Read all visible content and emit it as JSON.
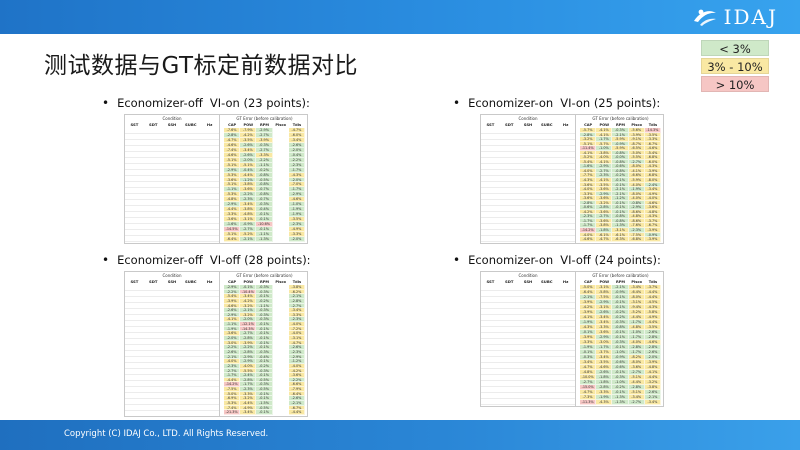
{
  "header": {
    "logo_text": "IDAJ",
    "logo_icon": "idaj-swoosh-logo"
  },
  "slide": {
    "title": "测试数据与GT标定前数据对比"
  },
  "legend": [
    {
      "label": "< 3%",
      "color": "#cfe9c9"
    },
    {
      "label": "3% - 10%",
      "color": "#f9e8a3"
    },
    {
      "label": "> 10%",
      "color": "#f6c6c4"
    }
  ],
  "panels": [
    {
      "bullet": "•",
      "label_main": "Economizer-off",
      "label_sub": "VI-on (23 points):",
      "table": {
        "condition_title": "Condition",
        "condition_columns": [
          "SST",
          "SDT",
          "SSH",
          "SUBC",
          "Hz"
        ],
        "error_title": "GT Error (before calibration)",
        "error_columns": [
          "CAP",
          "POW",
          "RPM",
          "Pisco",
          "Tdis"
        ],
        "rows": [
          [
            "-7.6%",
            "-7.9%",
            "-2.9%",
            "",
            "-4.7%"
          ],
          [
            "-2.8%",
            "-4.2%",
            "-2.7%",
            "",
            "-6.0%"
          ],
          [
            "-4.7%",
            "-3.5%",
            "-3.9%",
            "",
            "-3.4%"
          ],
          [
            "-4.6%",
            "-2.6%",
            "-0.3%",
            "",
            "-2.6%"
          ],
          [
            "-7.4%",
            "-3.4%",
            "-2.7%",
            "",
            "-2.0%"
          ],
          [
            "-4.6%",
            "-2.6%",
            "-3.3%",
            "",
            "-0.4%"
          ],
          [
            "-5.1%",
            "-2.0%",
            "-2.2%",
            "",
            "-2.2%"
          ],
          [
            "-5.1%",
            "-5.1%",
            "-1.1%",
            "",
            "-2.3%"
          ],
          [
            "-2.9%",
            "-0.4%",
            "-0.2%",
            "",
            "-1.7%"
          ],
          [
            "-5.3%",
            "-4.4%",
            "-0.8%",
            "",
            "-4.3%"
          ],
          [
            "-3.6%",
            "-1.2%",
            "-0.5%",
            "",
            "-2.0%"
          ],
          [
            "-5.1%",
            "-3.8%",
            "-0.8%",
            "",
            "-7.0%"
          ],
          [
            "-1.1%",
            "-3.6%",
            "-0.7%",
            "",
            "-1.7%"
          ],
          [
            "-5.3%",
            "-2.2%",
            "-0.8%",
            "",
            "-2.9%"
          ],
          [
            "-4.8%",
            "-2.3%",
            "-0.7%",
            "",
            "-4.6%"
          ],
          [
            "-2.9%",
            "-3.4%",
            "-0.3%",
            "",
            "-1.0%"
          ],
          [
            "-4.4%",
            "-3.8%",
            "-0.4%",
            "",
            "-1.9%"
          ],
          [
            "-3.3%",
            "-4.8%",
            "-0.1%",
            "",
            "-1.9%"
          ],
          [
            "-3.6%",
            "-3.1%",
            "-0.1%",
            "",
            "-3.5%"
          ],
          [
            "-1.6%",
            "-0.9%",
            "-10.6%",
            "",
            "-2.3%"
          ],
          [
            "-14.5%",
            "-2.7%",
            "-0.1%",
            "",
            "-4.9%"
          ],
          [
            "-5.1%",
            "-5.2%",
            "-1.1%",
            "",
            "-3.3%"
          ],
          [
            "-6.4%",
            "-2.1%",
            "-1.3%",
            "",
            "-2.0%"
          ]
        ]
      }
    },
    {
      "bullet": "•",
      "label_main": "Economizer-on",
      "label_sub": "VI-on (25 points):",
      "table": {
        "condition_title": "Condition",
        "condition_columns": [
          "SST",
          "SDT",
          "SSH",
          "SUBC",
          "Hz"
        ],
        "error_title": "GT Error (before calibration)",
        "error_columns": [
          "CAP",
          "POW",
          "RPM",
          "Pisco",
          "Tdis"
        ],
        "rows": [
          [
            "-5.7%",
            "-4.1%",
            "-0.3%",
            "-5.6%",
            "-14.3%"
          ],
          [
            "-2.8%",
            "-4.1%",
            "-2.1%",
            "-3.9%",
            "-3.5%"
          ],
          [
            "-3.2%",
            "-1.7%",
            "-5.9%",
            "-9.1%",
            "-3.3%"
          ],
          [
            "-5.1%",
            "-5.7%",
            "-0.9%",
            "-8.7%",
            "-6.7%"
          ],
          [
            "-11.4%",
            "-1.0%",
            "-5.9%",
            "-6.5%",
            "-4.6%"
          ],
          [
            "-4.1%",
            "-3.8%",
            "-0.8%",
            "-5.0%",
            "-5.4%"
          ],
          [
            "-5.2%",
            "-4.0%",
            "-0.0%",
            "-5.5%",
            "-6.8%"
          ],
          [
            "-5.4%",
            "-4.1%",
            "-0.8%",
            "-2.7%",
            "-6.0%"
          ],
          [
            "-1.6%",
            "-2.9%",
            "-0.6%",
            "-8.0%",
            "-4.3%"
          ],
          [
            "-4.0%",
            "-2.7%",
            "-0.8%",
            "-4.1%",
            "-3.9%"
          ],
          [
            "-7.7%",
            "-2.3%",
            "-0.2%",
            "-6.6%",
            "-6.8%"
          ],
          [
            "-4.3%",
            "-4.1%",
            "-0.1%",
            "-5.9%",
            "-8.0%"
          ],
          [
            "-3.6%",
            "-3.5%",
            "-0.1%",
            "-4.0%",
            "-2.4%"
          ],
          [
            "-4.0%",
            "-3.6%",
            "-2.1%",
            "-1.9%",
            "-3.4%"
          ],
          [
            "-3.3%",
            "-2.9%",
            "-2.1%",
            "-8.0%",
            "-4.9%"
          ],
          [
            "-3.6%",
            "-3.6%",
            "-1.2%",
            "-4.0%",
            "-4.0%"
          ],
          [
            "-2.8%",
            "-3.2%",
            "-0.1%",
            "-0.8%",
            "-4.6%"
          ],
          [
            "-0.6%",
            "-2.8%",
            "-0.1%",
            "-2.9%",
            "-3.6%"
          ],
          [
            "-4.2%",
            "-3.6%",
            "-0.1%",
            "-8.6%",
            "-4.8%"
          ],
          [
            "-2.3%",
            "-2.7%",
            "-0.8%",
            "-4.8%",
            "-4.3%"
          ],
          [
            "-1.7%",
            "-3.6%",
            "-0.8%",
            "-8.6%",
            "-3.7%"
          ],
          [
            "-1.7%",
            "-3.8%",
            "-1.3%",
            "-7.6%",
            "-6.7%"
          ],
          [
            "-14.2%",
            "-1.8%",
            "-3.1%",
            "-2.3%",
            "-3.9%"
          ],
          [
            "-4.0%",
            "-6.1%",
            "-6.1%",
            "-7.5%",
            "-0.9%"
          ],
          [
            "-4.6%",
            "-4.7%",
            "-6.3%",
            "-6.8%",
            "-3.9%"
          ]
        ]
      }
    },
    {
      "bullet": "•",
      "label_main": "Economizer-off",
      "label_sub": "VI-off (28 points):",
      "table": {
        "condition_title": "Condition",
        "condition_columns": [
          "SST",
          "SDT",
          "SSH",
          "SUBC",
          "Hz"
        ],
        "error_title": "GT Error (before calibration)",
        "error_columns": [
          "CAP",
          "POW",
          "RPM",
          "Pisco",
          "Tdis"
        ],
        "rows": [
          [
            "-2.9%",
            "-0.1%",
            "-0.3%",
            "",
            "-3.8%"
          ],
          [
            "-2.2%",
            "-10.4%",
            "-0.3%",
            "",
            "-6.2%"
          ],
          [
            "-5.4%",
            "-3.4%",
            "-0.1%",
            "",
            "-2.1%"
          ],
          [
            "-3.9%",
            "-4.2%",
            "-0.2%",
            "",
            "-2.8%"
          ],
          [
            "-4.6%",
            "-3.2%",
            "-1.1%",
            "",
            "-2.7%"
          ],
          [
            "-2.6%",
            "-2.1%",
            "-0.3%",
            "",
            "-3.4%"
          ],
          [
            "-2.9%",
            "-3.2%",
            "-0.3%",
            "",
            "-3.3%"
          ],
          [
            "-4.1%",
            "-2.0%",
            "-0.3%",
            "",
            "-2.3%"
          ],
          [
            "-1.1%",
            "-12.1%",
            "-0.1%",
            "",
            "-4.0%"
          ],
          [
            "-1.9%",
            "-14.3%",
            "-0.1%",
            "",
            "-7.2%"
          ],
          [
            "-3.6%",
            "-2.7%",
            "-0.1%",
            "",
            "-4.0%"
          ],
          [
            "-2.0%",
            "-2.8%",
            "-0.1%",
            "",
            "-3.1%"
          ],
          [
            "-3.0%",
            "-3.9%",
            "-0.1%",
            "",
            "-4.7%"
          ],
          [
            "-2.2%",
            "-2.2%",
            "-0.1%",
            "",
            "-2.6%"
          ],
          [
            "-2.6%",
            "-2.8%",
            "-0.3%",
            "",
            "-2.3%"
          ],
          [
            "-2.1%",
            "-2.9%",
            "-0.4%",
            "",
            "-2.9%"
          ],
          [
            "-4.0%",
            "-2.9%",
            "-0.1%",
            "",
            "-1.2%"
          ],
          [
            "-2.3%",
            "-4.0%",
            "-0.2%",
            "",
            "-4.0%"
          ],
          [
            "-2.7%",
            "-5.5%",
            "-0.3%",
            "",
            "-4.2%"
          ],
          [
            "-1.7%",
            "-2.4%",
            "-0.1%",
            "",
            "-3.6%"
          ],
          [
            "-4.4%",
            "-2.8%",
            "-0.5%",
            "",
            "-2.2%"
          ],
          [
            "-14.2%",
            "-1.7%",
            "-0.3%",
            "",
            "-6.6%"
          ],
          [
            "-7.5%",
            "-2.3%",
            "-0.5%",
            "",
            "-7.9%"
          ],
          [
            "-5.0%",
            "-3.3%",
            "-0.1%",
            "",
            "-6.4%"
          ],
          [
            "-6.9%",
            "-3.2%",
            "-0.1%",
            "",
            "-2.6%"
          ],
          [
            "-5.3%",
            "-4.4%",
            "-1.5%",
            "",
            "-2.1%"
          ],
          [
            "-7.4%",
            "-4.9%",
            "-0.5%",
            "",
            "-6.7%"
          ],
          [
            "-21.3%",
            "-3.4%",
            "-0.1%",
            "",
            "-4.4%"
          ]
        ]
      }
    },
    {
      "bullet": "•",
      "label_main": "Economizer-on",
      "label_sub": "VI-off (24 points):",
      "table": {
        "condition_title": "Condition",
        "condition_columns": [
          "SST",
          "SDT",
          "SSH",
          "SUBC",
          "Hz"
        ],
        "error_title": "GT Error (before calibration)",
        "error_columns": [
          "CAP",
          "POW",
          "RPM",
          "Pisco",
          "Tdis"
        ],
        "rows": [
          [
            "-5.0%",
            "-3.1%",
            "-2.1%",
            "-3.4%",
            "-3.7%"
          ],
          [
            "-6.4%",
            "-5.8%",
            "-0.9%",
            "-6.4%",
            "-4.4%"
          ],
          [
            "-2.1%",
            "-7.5%",
            "-0.1%",
            "-8.0%",
            "-4.4%"
          ],
          [
            "-3.9%",
            "-2.9%",
            "-0.1%",
            "-3.1%",
            "-4.5%"
          ],
          [
            "-4.2%",
            "-3.1%",
            "-0.1%",
            "-9.4%",
            "-4.3%"
          ],
          [
            "-3.9%",
            "-2.6%",
            "-0.2%",
            "-5.2%",
            "-5.8%"
          ],
          [
            "-4.1%",
            "-3.4%",
            "-0.2%",
            "-4.4%",
            "-4.9%"
          ],
          [
            "-1.9%",
            "-3.4%",
            "-0.3%",
            "-1.7%",
            "-4.4%"
          ],
          [
            "-4.3%",
            "-3.3%",
            "-0.8%",
            "-4.8%",
            "-3.5%"
          ],
          [
            "-0.1%",
            "-3.6%",
            "-0.1%",
            "-1.0%",
            "-2.6%"
          ],
          [
            "-3.9%",
            "-2.9%",
            "-0.1%",
            "-1.7%",
            "-2.8%"
          ],
          [
            "-3.3%",
            "-3.0%",
            "-0.3%",
            "-4.0%",
            "-4.6%"
          ],
          [
            "-1.9%",
            "-1.7%",
            "-0.1%",
            "-2.8%",
            "-2.8%"
          ],
          [
            "-0.1%",
            "-3.7%",
            "-1.0%",
            "-1.7%",
            "-2.6%"
          ],
          [
            "-0.3%",
            "-3.4%",
            "-0.9%",
            "-8.2%",
            "-2.0%"
          ],
          [
            "-3.4%",
            "-3.5%",
            "-0.6%",
            "-8.0%",
            "-3.9%"
          ],
          [
            "-4.7%",
            "-4.6%",
            "-0.6%",
            "-3.6%",
            "-4.8%"
          ],
          [
            "-4.8%",
            "-2.6%",
            "-0.1%",
            "-2.7%",
            "-4.1%"
          ],
          [
            "-10.0%",
            "-1.8%",
            "-0.3%",
            "-5.1%",
            "-4.4%"
          ],
          [
            "-2.7%",
            "-1.8%",
            "-1.0%",
            "-4.4%",
            "-3.2%"
          ],
          [
            "-15.0%",
            "-2.8%",
            "-0.2%",
            "-2.8%",
            "-3.8%"
          ],
          [
            "-4.7%",
            "-3.3%",
            "-0.1%",
            "-5.1%",
            "-2.6%"
          ],
          [
            "-7.3%",
            "-1.9%",
            "-1.3%",
            "-3.4%",
            "-2.1%"
          ],
          [
            "-11.3%",
            "-4.3%",
            "-1.3%",
            "-2.7%",
            "-3.4%"
          ]
        ]
      }
    }
  ],
  "footer": {
    "copyright": "Copyright (C) IDAJ Co., LTD. All Rights Reserved."
  }
}
